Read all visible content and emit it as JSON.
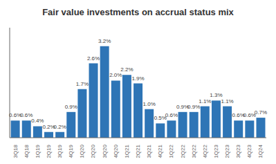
{
  "chart_data": {
    "type": "bar",
    "title": "Fair value investments on accrual status mix",
    "categories": [
      "3Q18",
      "4Q18",
      "1Q19",
      "2Q19",
      "3Q19",
      "4Q19",
      "1Q20",
      "2Q20",
      "3Q20",
      "4Q20",
      "1Q21",
      "2Q21",
      "3Q21",
      "4Q21",
      "1Q22",
      "2Q22",
      "3Q22",
      "4Q22",
      "1Q23",
      "2Q23",
      "3Q23",
      "4Q23",
      "1Q24"
    ],
    "values": [
      0.6,
      0.6,
      0.4,
      0.2,
      0.2,
      0.9,
      1.7,
      2.6,
      3.2,
      2.0,
      2.2,
      1.9,
      1.0,
      0.5,
      0.6,
      0.9,
      0.9,
      1.1,
      1.3,
      1.1,
      0.6,
      0.6,
      0.7
    ],
    "value_labels": [
      "0.6%",
      "0.6%",
      "0.4%",
      "0.2%",
      "0.2%",
      "0.9%",
      "1.7%",
      "2.6%",
      "3.2%",
      "2.0%",
      "2.2%",
      "1.9%",
      "1.0%",
      "0.5%",
      "0.6%",
      "0.9%",
      "0.9%",
      "1.1%",
      "1.3%",
      "1.1%",
      "0.6%",
      "0.6%",
      "0.7%"
    ],
    "color": "#2E75B6",
    "ylim": [
      0,
      3.85
    ],
    "data_labels": true,
    "tick_labels": "x"
  }
}
